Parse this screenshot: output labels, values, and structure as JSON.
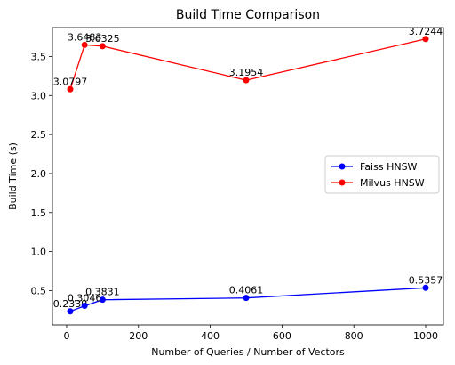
{
  "chart_data": {
    "type": "line",
    "title": "Build Time Comparison",
    "xlabel": "Number of Queries / Number of Vectors",
    "ylabel": "Build Time (s)",
    "xlim": [
      -39.5,
      1049.5
    ],
    "ylim": [
      0.06,
      3.87
    ],
    "xticks": [
      0,
      200,
      400,
      600,
      800,
      1000
    ],
    "yticks": [
      0.5,
      1.0,
      1.5,
      2.0,
      2.5,
      3.0,
      3.5
    ],
    "ytick_labels": [
      "0.5",
      "1.0",
      "1.5",
      "2.0",
      "2.5",
      "3.0",
      "3.5"
    ],
    "grid": false,
    "legend_position": "center-right",
    "x": [
      10,
      50,
      100,
      500,
      1000
    ],
    "series": [
      {
        "name": "Faiss HNSW",
        "color": "#0000ff",
        "values": [
          0.2339,
          0.3046,
          0.3831,
          0.4061,
          0.5357
        ],
        "labels": [
          "0.2339",
          "0.3046",
          "0.3831",
          "0.4061",
          "0.5357"
        ]
      },
      {
        "name": "Milvus HNSW",
        "color": "#ff0000",
        "values": [
          3.0797,
          3.6483,
          3.6325,
          3.1954,
          3.7244
        ],
        "labels": [
          "3.0797",
          "3.6483",
          "3.6325",
          "3.1954",
          "3.7244"
        ]
      }
    ]
  }
}
